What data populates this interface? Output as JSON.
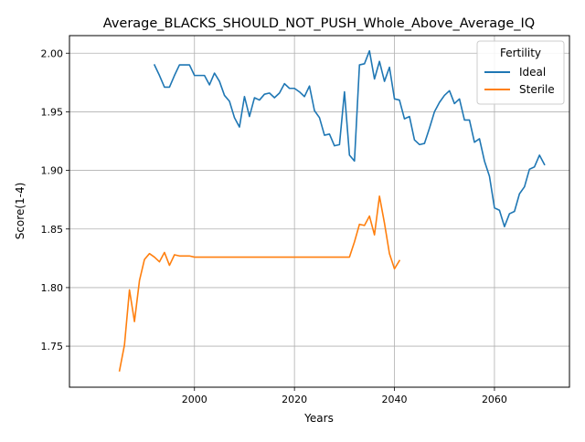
{
  "chart_data": {
    "type": "line",
    "title": "Average_BLACKS_SHOULD_NOT_PUSH_Whole_Above_Average_IQ",
    "xlabel": "Years",
    "ylabel": "Score(1-4)",
    "xlim": [
      1975,
      2075
    ],
    "ylim": [
      1.715,
      2.015
    ],
    "xticks": [
      2000,
      2020,
      2040,
      2060
    ],
    "yticks": [
      1.75,
      1.8,
      1.85,
      1.9,
      1.95,
      2.0
    ],
    "xtick_labels": [
      "2000",
      "2020",
      "2040",
      "2060"
    ],
    "ytick_labels": [
      "1.75",
      "1.80",
      "1.85",
      "1.90",
      "1.95",
      "2.00"
    ],
    "grid": true,
    "legend": {
      "title": "Fertility",
      "placement": "top-right"
    },
    "series": [
      {
        "name": "Ideal",
        "color": "#1f77b4",
        "x": [
          1992,
          1993,
          1994,
          1995,
          1996,
          1997,
          1998,
          1999,
          2000,
          2001,
          2002,
          2003,
          2004,
          2005,
          2006,
          2007,
          2008,
          2009,
          2010,
          2011,
          2012,
          2013,
          2014,
          2015,
          2016,
          2017,
          2018,
          2019,
          2020,
          2021,
          2022,
          2023,
          2024,
          2025,
          2026,
          2027,
          2028,
          2029,
          2030,
          2031,
          2032,
          2033,
          2034,
          2035,
          2036,
          2037,
          2038,
          2039,
          2040,
          2041,
          2042,
          2043,
          2044,
          2045,
          2046,
          2047,
          2048,
          2049,
          2050,
          2051,
          2052,
          2053,
          2054,
          2055,
          2056,
          2057,
          2058,
          2059,
          2060,
          2061,
          2062,
          2063,
          2064,
          2065,
          2066,
          2067,
          2068,
          2069,
          2070
        ],
        "values": [
          1.99,
          1.981,
          1.971,
          1.971,
          1.981,
          1.99,
          1.99,
          1.99,
          1.981,
          1.981,
          1.981,
          1.973,
          1.983,
          1.976,
          1.964,
          1.959,
          1.945,
          1.937,
          1.963,
          1.946,
          1.962,
          1.96,
          1.965,
          1.966,
          1.962,
          1.966,
          1.974,
          1.97,
          1.97,
          1.967,
          1.963,
          1.972,
          1.951,
          1.945,
          1.93,
          1.931,
          1.921,
          1.922,
          1.967,
          1.913,
          1.908,
          1.99,
          1.991,
          2.002,
          1.978,
          1.993,
          1.976,
          1.988,
          1.961,
          1.96,
          1.944,
          1.946,
          1.926,
          1.922,
          1.923,
          1.936,
          1.95,
          1.958,
          1.964,
          1.968,
          1.957,
          1.961,
          1.943,
          1.943,
          1.924,
          1.927,
          1.908,
          1.895,
          1.868,
          1.866,
          1.852,
          1.863,
          1.865,
          1.88,
          1.886,
          1.901,
          1.903,
          1.913,
          1.905
        ]
      },
      {
        "name": "Sterile",
        "color": "#ff7f0e",
        "x": [
          1985,
          1986,
          1987,
          1988,
          1989,
          1990,
          1991,
          1992,
          1993,
          1994,
          1995,
          1996,
          1997,
          1998,
          1999,
          2000,
          2001,
          2002,
          2003,
          2004,
          2005,
          2006,
          2007,
          2008,
          2009,
          2010,
          2011,
          2012,
          2013,
          2014,
          2015,
          2016,
          2017,
          2018,
          2019,
          2020,
          2021,
          2022,
          2023,
          2024,
          2025,
          2026,
          2027,
          2028,
          2029,
          2030,
          2031,
          2032,
          2033,
          2034,
          2035,
          2036,
          2037,
          2038,
          2039,
          2040,
          2041
        ],
        "values": [
          1.729,
          1.751,
          1.798,
          1.771,
          1.806,
          1.824,
          1.829,
          1.826,
          1.822,
          1.83,
          1.819,
          1.828,
          1.827,
          1.827,
          1.827,
          1.826,
          1.826,
          1.826,
          1.826,
          1.826,
          1.826,
          1.826,
          1.826,
          1.826,
          1.826,
          1.826,
          1.826,
          1.826,
          1.826,
          1.826,
          1.826,
          1.826,
          1.826,
          1.826,
          1.826,
          1.826,
          1.826,
          1.826,
          1.826,
          1.826,
          1.826,
          1.826,
          1.826,
          1.826,
          1.826,
          1.826,
          1.826,
          1.839,
          1.854,
          1.853,
          1.861,
          1.845,
          1.878,
          1.855,
          1.829,
          1.816,
          1.823
        ]
      }
    ]
  }
}
